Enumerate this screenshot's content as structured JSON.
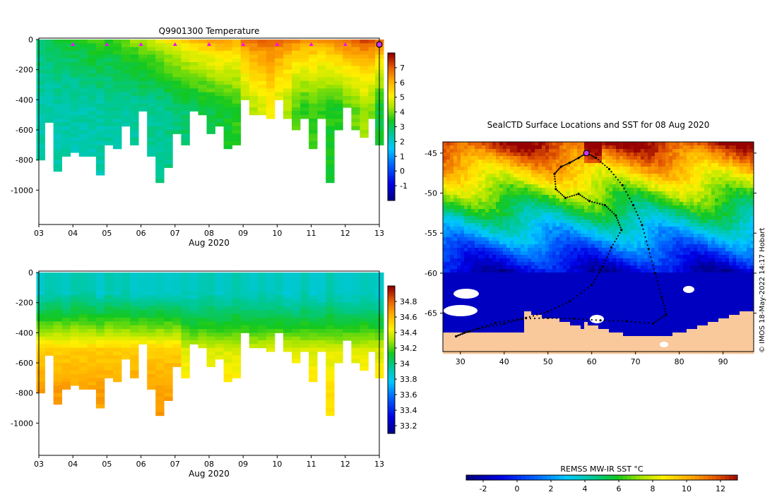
{
  "chart_data": [
    {
      "type": "heatmap",
      "title": "Q9901300  Temperature",
      "xlabel": "Aug 2020",
      "x_ticks": [
        "03",
        "04",
        "05",
        "06",
        "07",
        "08",
        "09",
        "10",
        "11",
        "12",
        "13"
      ],
      "y_ticks": [
        "0",
        "-200",
        "-400",
        "-600",
        "-800",
        "-1000"
      ],
      "ylim": [
        -1200,
        0
      ],
      "xlim_days": [
        3,
        13
      ],
      "colorbar_ticks": [
        "7",
        "6",
        "5",
        "4",
        "3",
        "2",
        "1",
        "0",
        "-1"
      ],
      "colorbar_range": [
        -2,
        8
      ],
      "surface_markers_days": [
        4,
        5,
        6,
        7,
        8,
        9,
        10,
        11,
        12
      ],
      "profiles": {
        "day": [
          3.05,
          3.3,
          3.55,
          3.8,
          4.05,
          4.3,
          4.55,
          4.8,
          5.05,
          5.3,
          5.55,
          5.8,
          6.05,
          6.3,
          6.55,
          6.8,
          7.05,
          7.3,
          7.55,
          7.8,
          8.05,
          8.3,
          8.55,
          8.8,
          9.05,
          9.3,
          9.55,
          9.8,
          10.05,
          10.3,
          10.55,
          10.8,
          11.05,
          11.3,
          11.55,
          11.8,
          12.05,
          12.3,
          12.55,
          12.8,
          13.0
        ],
        "max_depth": [
          780,
          550,
          860,
          760,
          730,
          760,
          770,
          880,
          690,
          720,
          560,
          700,
          460,
          760,
          940,
          830,
          610,
          700,
          470,
          500,
          620,
          560,
          720,
          700,
          400,
          500,
          490,
          520,
          380,
          510,
          600,
          520,
          710,
          520,
          950,
          580,
          440,
          600,
          650,
          520,
          700
        ],
        "surface_temp": [
          3.0,
          3.1,
          3.2,
          3.3,
          3.4,
          3.6,
          3.8,
          3.9,
          3.6,
          3.9,
          4.1,
          4.3,
          4.4,
          4.6,
          4.9,
          5.2,
          5.5,
          5.7,
          5.9,
          6.0,
          6.2,
          6.4,
          6.3,
          6.1,
          6.6,
          6.9,
          7.0,
          7.1,
          7.0,
          6.8,
          6.6,
          6.5,
          6.5,
          6.4,
          6.6,
          6.8,
          7.0,
          7.2,
          7.3,
          7.2,
          7.0
        ],
        "deep_temp": [
          2.4,
          2.4,
          2.4,
          2.4,
          2.4,
          2.4,
          2.4,
          2.4,
          2.5,
          2.5,
          2.5,
          2.5,
          2.6,
          2.6,
          2.6,
          2.7,
          2.8,
          2.9,
          3.0,
          3.1,
          3.2,
          3.3,
          3.4,
          3.6,
          4.2,
          4.5,
          4.8,
          5.0,
          4.6,
          4.4,
          3.8,
          3.6,
          3.7,
          3.6,
          3.5,
          3.5,
          3.8,
          4.0,
          4.3,
          4.1,
          3.3
        ]
      }
    },
    {
      "type": "heatmap",
      "xlabel": "Aug 2020",
      "x_ticks": [
        "03",
        "04",
        "05",
        "06",
        "07",
        "08",
        "09",
        "10",
        "11",
        "12",
        "13"
      ],
      "y_ticks": [
        "0",
        "-200",
        "-400",
        "-600",
        "-800",
        "-1000"
      ],
      "ylim": [
        -1200,
        0
      ],
      "xlim_days": [
        3,
        13
      ],
      "colorbar_ticks": [
        "34.8",
        "34.6",
        "34.4",
        "34.2",
        "34",
        "33.8",
        "33.6",
        "33.4",
        "33.2"
      ],
      "colorbar_range": [
        33.1,
        35.0
      ],
      "profiles": {
        "surface_sal": [
          33.95,
          33.9,
          33.9,
          33.85,
          33.95,
          33.9
        ],
        "deep_sal": [
          34.6,
          34.55,
          34.5,
          34.45,
          34.35,
          34.3,
          34.35,
          34.55
        ]
      }
    },
    {
      "type": "map",
      "title": "SealCTD Surface Locations and SST for 08 Aug 2020",
      "x_ticks": [
        "30",
        "40",
        "50",
        "60",
        "70",
        "80",
        "90"
      ],
      "y_ticks": [
        "-45",
        "-50",
        "-55",
        "-60",
        "-65"
      ],
      "lon_range": [
        26,
        97
      ],
      "lat_range": [
        -69.8,
        -43.6
      ],
      "colorbar_label": "REMSS MW-IR SST °C",
      "colorbar_ticks": [
        "-2",
        "0",
        "2",
        "4",
        "6",
        "8",
        "10",
        "12"
      ],
      "colorbar_range": [
        -3,
        13
      ],
      "credit": "© IMOS 18-May-2022 14:17 Hobart",
      "track": [
        [
          58.8,
          -45.0
        ],
        [
          57.0,
          -45.6
        ],
        [
          55.0,
          -46.2
        ],
        [
          53.0,
          -46.7
        ],
        [
          51.5,
          -47.6
        ],
        [
          51.8,
          -49.5
        ],
        [
          54.0,
          -50.6
        ],
        [
          57.0,
          -50.1
        ],
        [
          59.5,
          -51.0
        ],
        [
          63.0,
          -51.5
        ],
        [
          65.5,
          -52.8
        ],
        [
          66.8,
          -54.6
        ],
        [
          64.5,
          -56.8
        ],
        [
          62.5,
          -59.2
        ],
        [
          60.0,
          -61.5
        ],
        [
          55.0,
          -63.5
        ],
        [
          50.0,
          -64.8
        ],
        [
          45.0,
          -65.6
        ],
        [
          40.0,
          -66.3
        ],
        [
          35.0,
          -66.8
        ],
        [
          31.0,
          -67.4
        ],
        [
          29.0,
          -67.9
        ],
        [
          32.0,
          -67.3
        ],
        [
          38.0,
          -66.2
        ],
        [
          44.0,
          -65.7
        ],
        [
          50.0,
          -65.6
        ],
        [
          56.0,
          -65.7
        ],
        [
          62.0,
          -65.9
        ],
        [
          68.0,
          -66.0
        ],
        [
          74.0,
          -66.3
        ],
        [
          77.0,
          -65.2
        ],
        [
          76.0,
          -63.0
        ],
        [
          74.5,
          -60.0
        ],
        [
          73.0,
          -57.0
        ],
        [
          71.5,
          -54.0
        ],
        [
          69.5,
          -51.5
        ],
        [
          67.0,
          -49.0
        ],
        [
          64.0,
          -47.0
        ],
        [
          61.0,
          -45.6
        ],
        [
          58.8,
          -45.0
        ]
      ]
    }
  ]
}
